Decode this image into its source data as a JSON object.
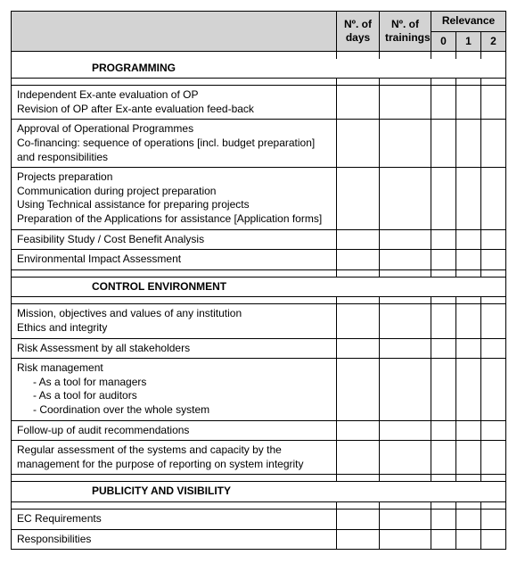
{
  "header": {
    "days": "Nº. of days",
    "trainings": "Nº. of trainings",
    "relevance": "Relevance",
    "rel0": "0",
    "rel1": "1",
    "rel2": "2"
  },
  "sections": {
    "programming": {
      "title": "PROGRAMMING",
      "rows": [
        {
          "lines": [
            "Independent Ex-ante evaluation of  OP",
            "Revision of OP after Ex-ante evaluation feed-back"
          ]
        },
        {
          "lines": [
            "Approval of Operational Programmes",
            "Co-financing: sequence of operations [incl. budget preparation] and responsibilities"
          ]
        },
        {
          "lines": [
            "Projects preparation",
            "Communication during project preparation",
            "Using Technical assistance for preparing projects",
            "Preparation of the Applications for assistance [Application forms]"
          ]
        },
        {
          "lines": [
            "Feasibility Study / Cost Benefit Analysis"
          ]
        },
        {
          "lines": [
            "Environmental Impact Assessment"
          ]
        }
      ]
    },
    "control": {
      "title": "CONTROL ENVIRONMENT",
      "rows": [
        {
          "lines": [
            "Mission, objectives and values of any institution",
            "Ethics and integrity"
          ]
        },
        {
          "lines": [
            "Risk Assessment by all stakeholders"
          ]
        },
        {
          "lines": [
            "Risk management"
          ],
          "subs": [
            "As a tool for managers",
            "As a tool for auditors",
            "Coordination over the whole system"
          ]
        },
        {
          "lines": [
            "Follow-up of audit recommendations"
          ]
        },
        {
          "lines": [
            "Regular assessment of the systems and capacity by the management for the purpose of reporting on system integrity"
          ]
        }
      ]
    },
    "publicity": {
      "title": "PUBLICITY AND VISIBILITY",
      "rows": [
        {
          "lines": [
            "EC Requirements"
          ]
        },
        {
          "lines": [
            "Responsibilities"
          ]
        }
      ]
    }
  }
}
